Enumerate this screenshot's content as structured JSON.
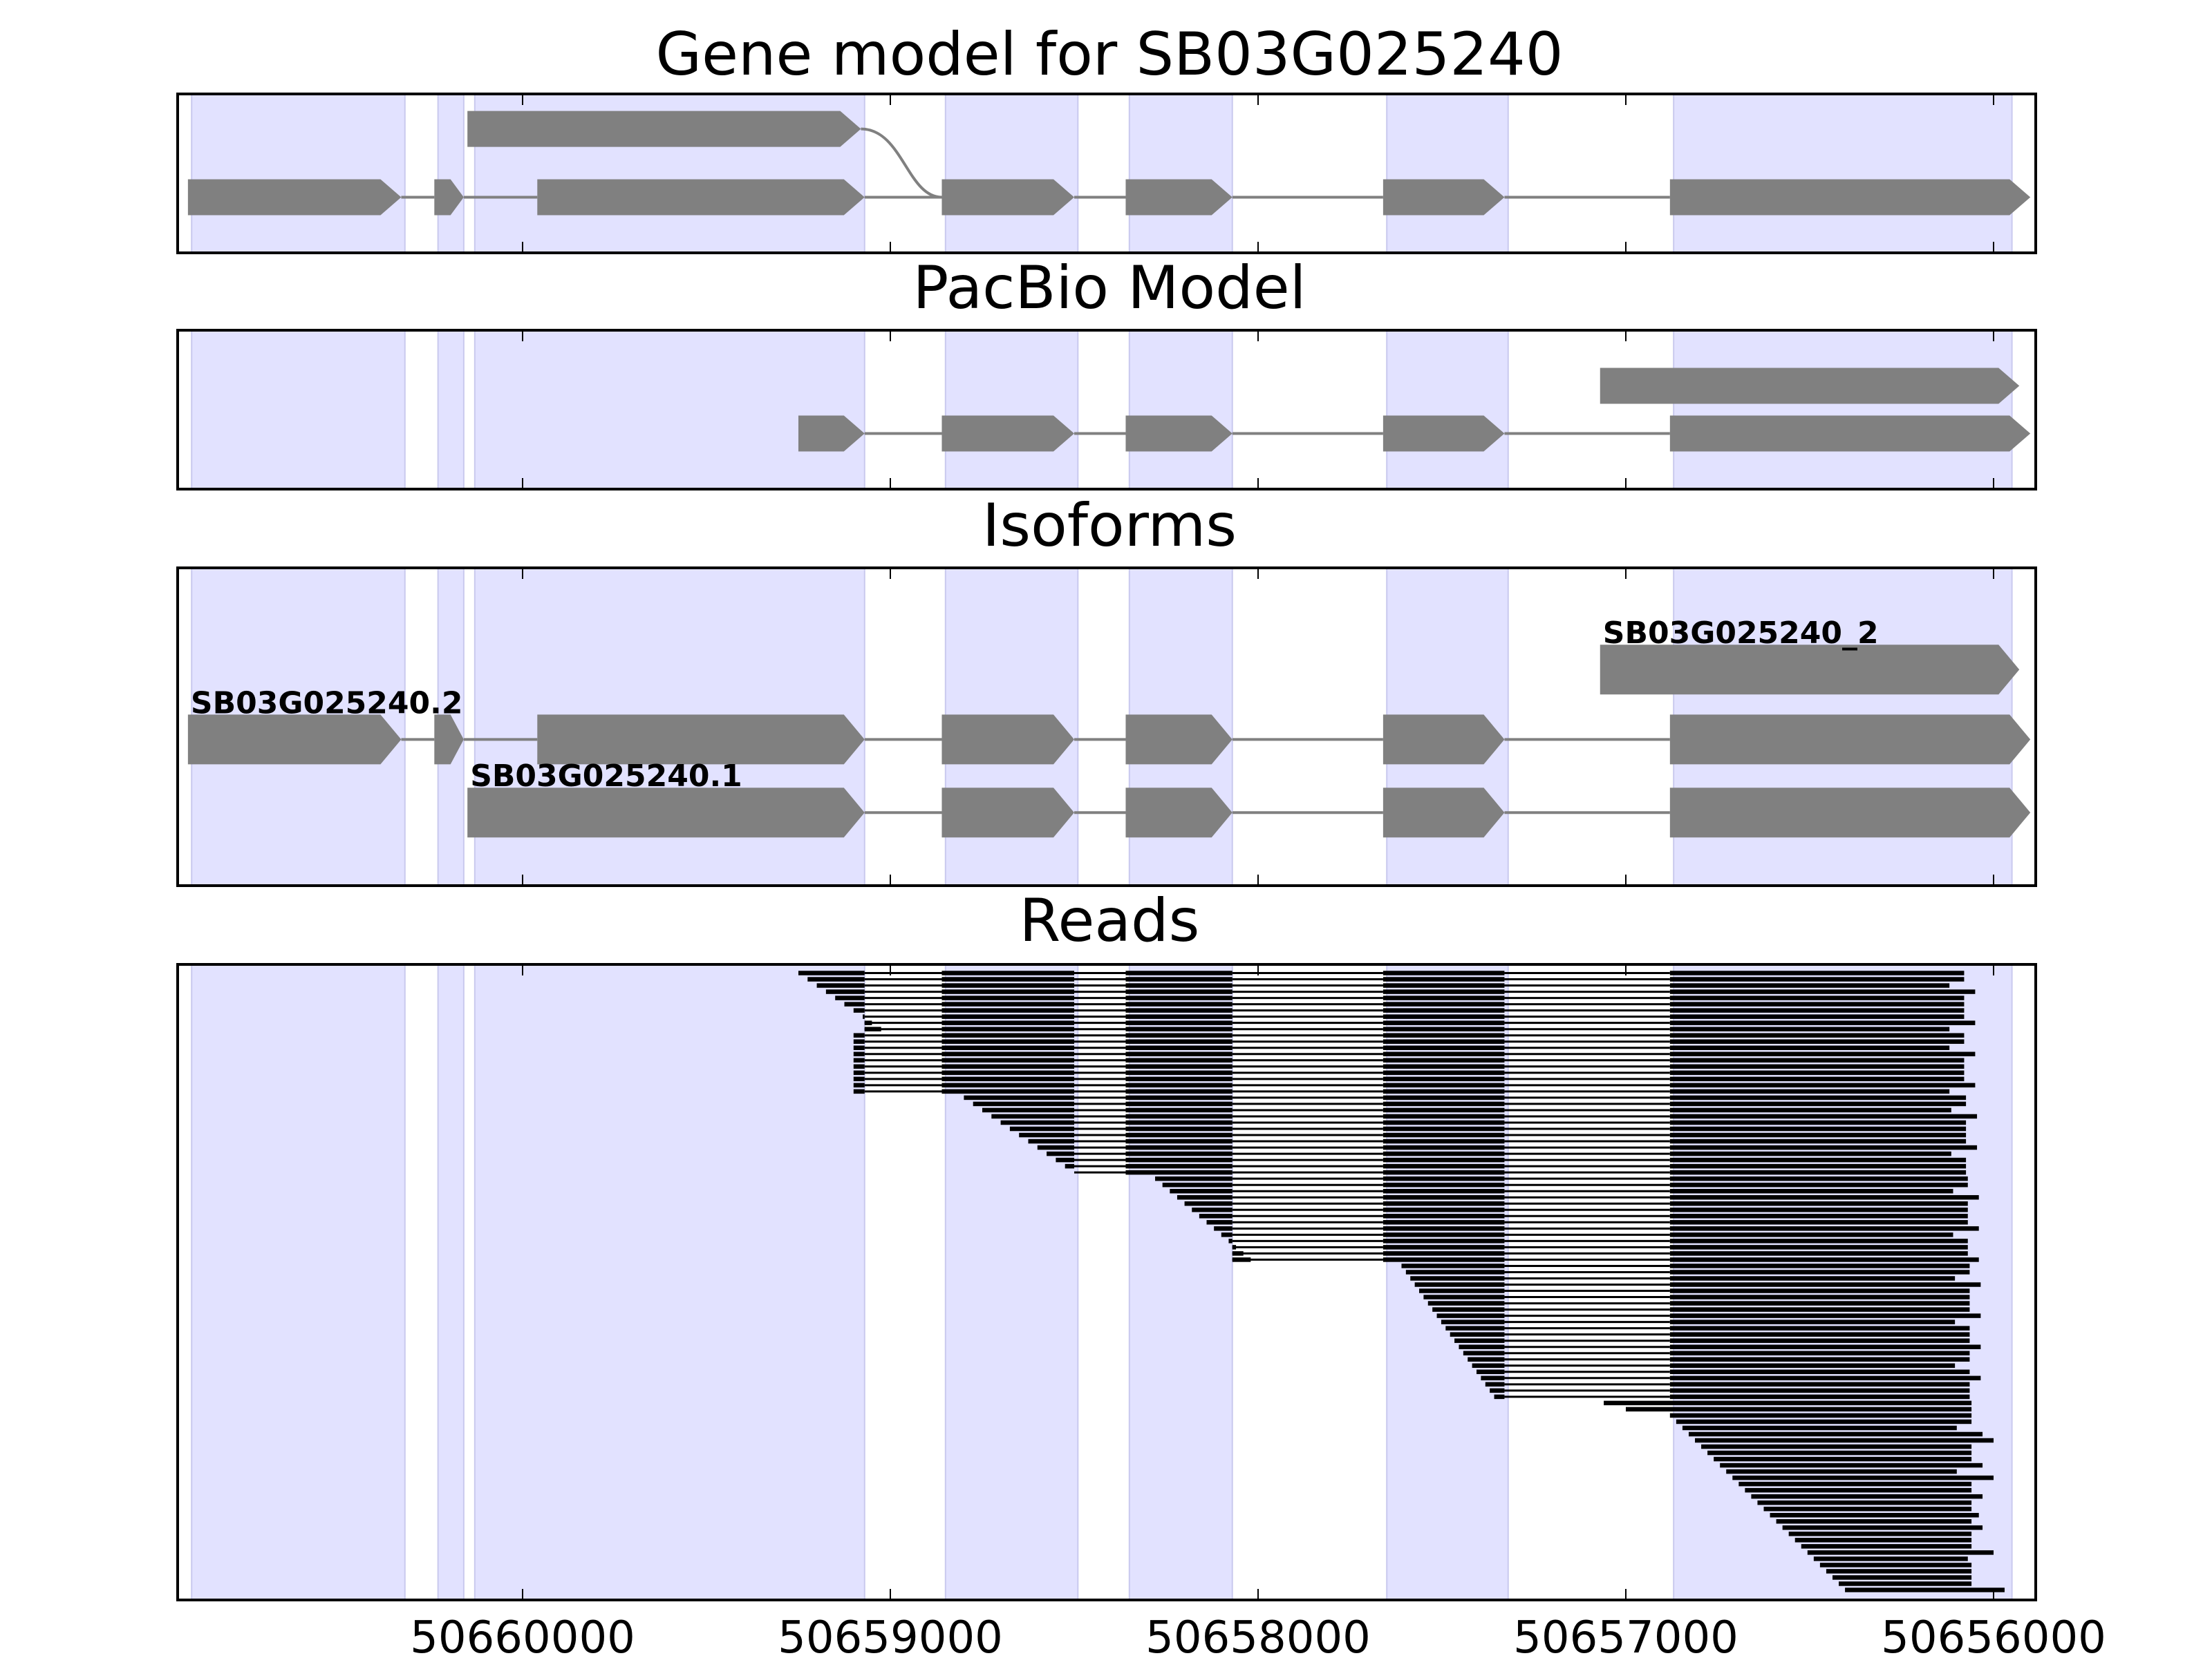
{
  "figure": {
    "colors": {
      "background": "#ffffff",
      "highlight": "#e2e2ff",
      "feature": "#808080",
      "read": "#000000",
      "axis": "#000000"
    }
  },
  "chart_data": {
    "type": "gene-track",
    "x_axis": {
      "ticks": [
        50660000,
        50659000,
        50658000,
        50657000,
        50656000
      ],
      "tick_labels": [
        "50660000",
        "50659000",
        "50658000",
        "50657000",
        "50656000"
      ],
      "direction": "descending"
    },
    "highlight_regions": [
      [
        50660900,
        50660320
      ],
      [
        50660230,
        50660160
      ],
      [
        50660130,
        50659070
      ],
      [
        50658850,
        50658490
      ],
      [
        50658350,
        50658070
      ],
      [
        50657650,
        50657320
      ],
      [
        50656870,
        50655950
      ]
    ],
    "panels": [
      {
        "title": "Gene model for SB03G025240",
        "tracks": [
          {
            "row": 0.22,
            "label": "",
            "segments": [
              [
                50660150,
                50659080
              ]
            ],
            "curve_to": [
              50658860,
              0.65
            ]
          },
          {
            "row": 0.65,
            "label": "",
            "segments": [
              [
                50660910,
                50660330
              ],
              [
                50660240,
                50660160
              ],
              [
                50659960,
                50659070
              ],
              [
                50658860,
                50658500
              ],
              [
                50658360,
                50658070
              ],
              [
                50657660,
                50657330
              ],
              [
                50656880,
                50655900
              ]
            ]
          }
        ]
      },
      {
        "title": "PacBio Model",
        "tracks": [
          {
            "row": 0.35,
            "label": "",
            "segments": [
              [
                50657070,
                50655930
              ]
            ]
          },
          {
            "row": 0.65,
            "label": "",
            "segments": [
              [
                50659250,
                50659070
              ],
              [
                50658860,
                50658500
              ],
              [
                50658360,
                50658070
              ],
              [
                50657660,
                50657330
              ],
              [
                50656880,
                50655900
              ]
            ]
          }
        ]
      },
      {
        "title": "Isoforms",
        "tracks": [
          {
            "row": 0.32,
            "label": "SB03G025240_2",
            "segments": [
              [
                50657070,
                50655930
              ]
            ]
          },
          {
            "row": 0.54,
            "label": "SB03G025240.2",
            "segments": [
              [
                50660910,
                50660330
              ],
              [
                50660240,
                50660160
              ],
              [
                50659960,
                50659070
              ],
              [
                50658860,
                50658500
              ],
              [
                50658360,
                50658070
              ],
              [
                50657660,
                50657330
              ],
              [
                50656880,
                50655900
              ]
            ]
          },
          {
            "row": 0.77,
            "label": "SB03G025240.1",
            "segments": [
              [
                50660150,
                50659070
              ],
              [
                50658860,
                50658500
              ],
              [
                50658360,
                50658070
              ],
              [
                50657660,
                50657330
              ],
              [
                50656880,
                50655900
              ]
            ]
          }
        ]
      },
      {
        "title": "Reads",
        "reads": {
          "count": 100,
          "groups": [
            {
              "n": 10,
              "first_start": 50659250,
              "start_step": -25,
              "first_end": 50656080,
              "skip": true,
              "pattern": "five"
            },
            {
              "n": 10,
              "first_start": 50659100,
              "start_step": 0,
              "first_end": 50656080,
              "skip": true,
              "pattern": "five"
            },
            {
              "n": 13,
              "first_start": 50658800,
              "start_step": -25,
              "first_end": 50656075,
              "skip": false,
              "pattern": "four"
            },
            {
              "n": 14,
              "first_start": 50658280,
              "start_step": -20,
              "first_end": 50656070,
              "skip": false,
              "pattern": "three"
            },
            {
              "n": 22,
              "first_start": 50657610,
              "start_step": -12,
              "first_end": 50656065,
              "skip": false,
              "pattern": "two"
            },
            {
              "n": 2,
              "first_start": 50657060,
              "start_step": -60,
              "first_end": 50656060,
              "skip": false,
              "pattern": "one"
            },
            {
              "n": 29,
              "first_start": 50656880,
              "start_step": -17,
              "first_end": 50656060,
              "skip": false,
              "pattern": "one"
            }
          ]
        }
      }
    ]
  }
}
